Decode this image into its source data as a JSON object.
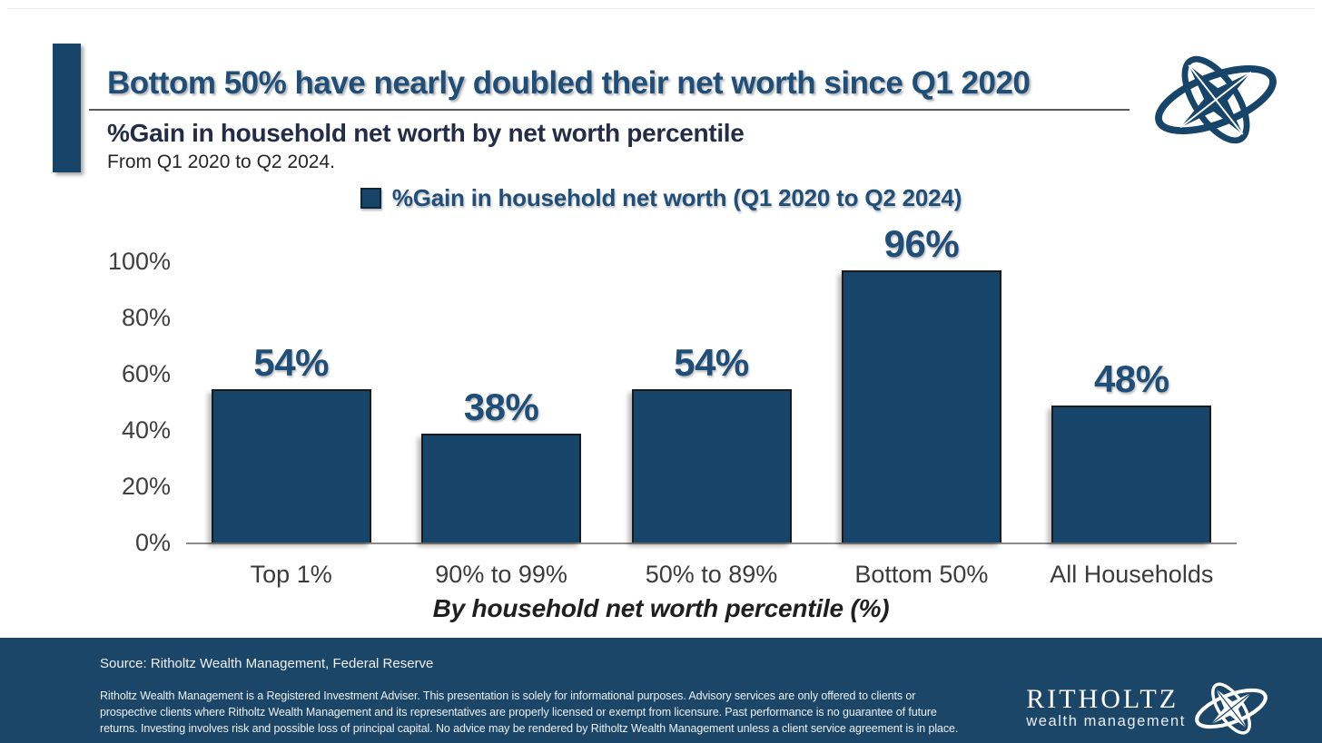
{
  "header": {
    "title": "Bottom 50% have nearly doubled their net worth since Q1 2020",
    "subtitle": "%Gain in household net worth by net worth percentile",
    "date_note": "From Q1 2020 to Q2 2024."
  },
  "chart_data": {
    "type": "bar",
    "title": "%Gain in household net worth by net worth percentile",
    "categories": [
      "Top 1%",
      "90% to 99%",
      "50% to 89%",
      "Bottom 50%",
      "All Households"
    ],
    "series": [
      {
        "name": "%Gain in household net worth (Q1 2020 to Q2 2024)",
        "values": [
          54,
          38,
          54,
          96,
          48
        ]
      }
    ],
    "value_labels": [
      "54%",
      "38%",
      "54%",
      "96%",
      "48%"
    ],
    "xlabel": "By household net worth percentile (%)",
    "ylabel": "",
    "ylim": [
      0,
      100
    ],
    "yticks": [
      "0%",
      "20%",
      "40%",
      "60%",
      "80%",
      "100%"
    ],
    "grid": false,
    "legend_position": "top",
    "bar_color": "#164569"
  },
  "footer": {
    "source": "Source: Ritholtz Wealth Management, Federal Reserve",
    "disclaimer_lines": [
      "Ritholtz Wealth Management is a Registered Investment Adviser. This presentation is solely for informational purposes. Advisory services are only offered to clients or",
      "prospective clients where Ritholtz Wealth Management and its representatives are properly licensed or exempt from licensure. Past performance is no guarantee of future",
      "returns. Investing involves risk and possible loss of principal capital. No advice may be rendered by Ritholtz Wealth Management unless a client service agreement is in place."
    ],
    "brand_name": "RITHOLTZ",
    "brand_subtitle": "wealth management"
  },
  "colors": {
    "navy": "#164569",
    "footer_navy": "#1B4668",
    "label_navy": "#1F4E79",
    "subtitle_navy": "#242C47"
  }
}
